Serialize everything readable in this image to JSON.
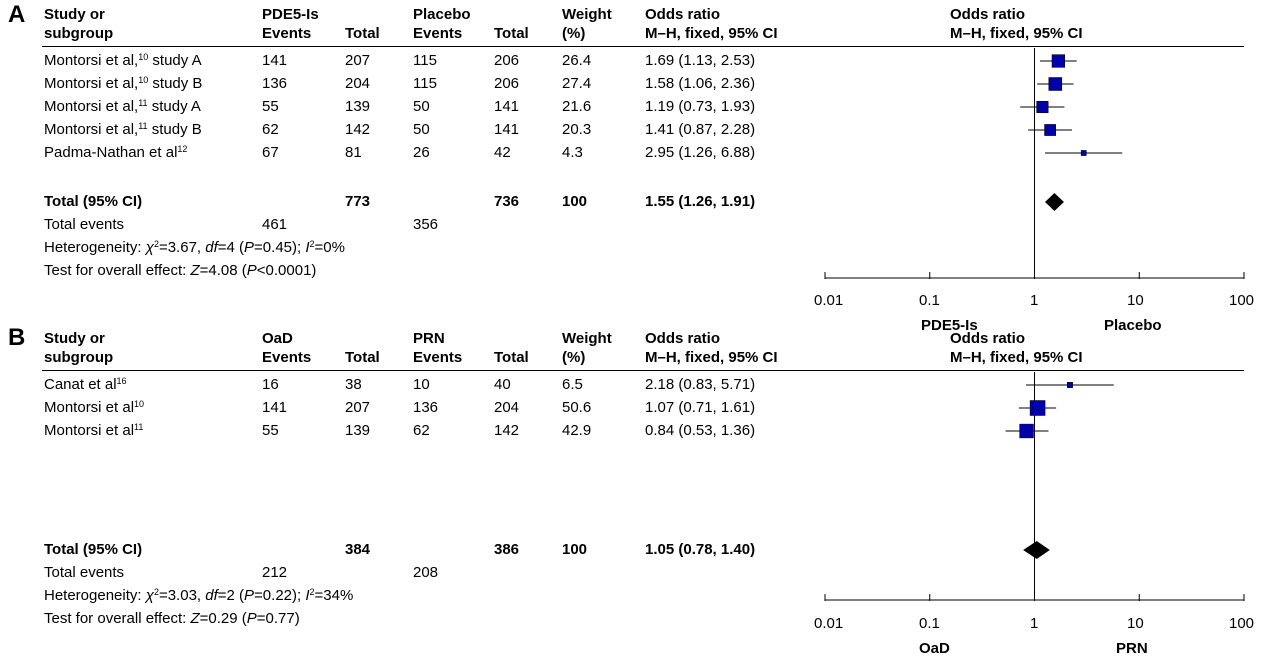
{
  "chart_data": [
    {
      "type": "forest",
      "panel_label": "A",
      "headers": {
        "study": [
          "Study or",
          "subgroup"
        ],
        "group1": {
          "name": "PDE5-Is",
          "events": "Events",
          "total": "Total"
        },
        "group2": {
          "name": "Placebo",
          "events": "Events",
          "total": "Total"
        },
        "weight": [
          "Weight",
          "(%)"
        ],
        "or_text": [
          "Odds ratio",
          "M–H, fixed, 95% CI"
        ],
        "or_plot": [
          "Odds ratio",
          "M–H, fixed, 95% CI"
        ]
      },
      "studies": [
        {
          "name": "Montorsi et al,",
          "ref": "10",
          "suffix": " study A",
          "e1": "141",
          "t1": "207",
          "e2": "115",
          "t2": "206",
          "weight": "26.4",
          "or_text": "1.69 (1.13, 2.53)",
          "or": 1.69,
          "lo": 1.13,
          "hi": 2.53
        },
        {
          "name": "Montorsi et al,",
          "ref": "10",
          "suffix": " study B",
          "e1": "136",
          "t1": "204",
          "e2": "115",
          "t2": "206",
          "weight": "27.4",
          "or_text": "1.58 (1.06, 2.36)",
          "or": 1.58,
          "lo": 1.06,
          "hi": 2.36
        },
        {
          "name": "Montorsi et al,",
          "ref": "11",
          "suffix": " study A",
          "e1": "55",
          "t1": "139",
          "e2": "50",
          "t2": "141",
          "weight": "21.6",
          "or_text": "1.19 (0.73, 1.93)",
          "or": 1.19,
          "lo": 0.73,
          "hi": 1.93
        },
        {
          "name": "Montorsi et al,",
          "ref": "11",
          "suffix": " study B",
          "e1": "62",
          "t1": "142",
          "e2": "50",
          "t2": "141",
          "weight": "20.3",
          "or_text": "1.41 (0.87, 2.28)",
          "or": 1.41,
          "lo": 0.87,
          "hi": 2.28
        },
        {
          "name": "Padma-Nathan et al",
          "ref": "12",
          "suffix": "",
          "e1": "67",
          "t1": "81",
          "e2": "26",
          "t2": "42",
          "weight": "4.3",
          "or_text": "2.95 (1.26, 6.88)",
          "or": 2.95,
          "lo": 1.26,
          "hi": 6.88
        }
      ],
      "total": {
        "label": "Total (95% CI)",
        "t1": "773",
        "t2": "736",
        "weight": "100",
        "or_text": "1.55 (1.26, 1.91)",
        "or": 1.55,
        "lo": 1.26,
        "hi": 1.91
      },
      "total_events": {
        "label": "Total events",
        "e1": "461",
        "e2": "356"
      },
      "heterogeneity": {
        "prefix": "Heterogeneity: ",
        "chi": "χ",
        "chi_sup": "2",
        "chi_val": "=3.67, ",
        "df_label": "df",
        "df_val": "=4 (",
        "p_label": "P",
        "p_val": "=0.45); ",
        "i_label": "I",
        "i_sup": "2",
        "i_val": "=0%"
      },
      "overall": {
        "prefix": "Test for overall effect: ",
        "z_label": "Z",
        "z_val": "=4.08 (",
        "p_label": "P",
        "p_val": "<0.0001)"
      },
      "axis": {
        "scale": "log",
        "ticks": [
          0.01,
          0.1,
          1,
          10,
          100
        ],
        "tick_labels": [
          "0.01",
          "0.1",
          "1",
          "10",
          "100"
        ],
        "favours_left": "PDE5-Is",
        "favours_right": "Placebo"
      }
    },
    {
      "type": "forest",
      "panel_label": "B",
      "headers": {
        "study": [
          "Study or",
          "subgroup"
        ],
        "group1": {
          "name": "OaD",
          "events": "Events",
          "total": "Total"
        },
        "group2": {
          "name": "PRN",
          "events": "Events",
          "total": "Total"
        },
        "weight": [
          "Weight",
          "(%)"
        ],
        "or_text": [
          "Odds ratio",
          "M–H, fixed, 95% CI"
        ],
        "or_plot": [
          "Odds ratio",
          "M–H, fixed, 95% CI"
        ]
      },
      "studies": [
        {
          "name": "Canat et al",
          "ref": "16",
          "suffix": "",
          "e1": "16",
          "t1": "38",
          "e2": "10",
          "t2": "40",
          "weight": "6.5",
          "or_text": "2.18 (0.83, 5.71)",
          "or": 2.18,
          "lo": 0.83,
          "hi": 5.71
        },
        {
          "name": "Montorsi et al",
          "ref": "10",
          "suffix": "",
          "e1": "141",
          "t1": "207",
          "e2": "136",
          "t2": "204",
          "weight": "50.6",
          "or_text": "1.07 (0.71, 1.61)",
          "or": 1.07,
          "lo": 0.71,
          "hi": 1.61
        },
        {
          "name": "Montorsi et al",
          "ref": "11",
          "suffix": "",
          "e1": "55",
          "t1": "139",
          "e2": "62",
          "t2": "142",
          "weight": "42.9",
          "or_text": "0.84 (0.53, 1.36)",
          "or": 0.84,
          "lo": 0.53,
          "hi": 1.36
        }
      ],
      "total": {
        "label": "Total (95% CI)",
        "t1": "384",
        "t2": "386",
        "weight": "100",
        "or_text": "1.05 (0.78, 1.40)",
        "or": 1.05,
        "lo": 0.78,
        "hi": 1.4
      },
      "total_events": {
        "label": "Total events",
        "e1": "212",
        "e2": "208"
      },
      "heterogeneity": {
        "prefix": "Heterogeneity: ",
        "chi": "χ",
        "chi_sup": "2",
        "chi_val": "=3.03, ",
        "df_label": "df",
        "df_val": "=2 (",
        "p_label": "P",
        "p_val": "=0.22); ",
        "i_label": "I",
        "i_sup": "2",
        "i_val": "=34%"
      },
      "overall": {
        "prefix": "Test for overall effect: ",
        "z_label": "Z",
        "z_val": "=0.29 (",
        "p_label": "P",
        "p_val": "=0.77)"
      },
      "axis": {
        "scale": "log",
        "ticks": [
          0.01,
          0.1,
          1,
          10,
          100
        ],
        "tick_labels": [
          "0.01",
          "0.1",
          "1",
          "10",
          "100"
        ],
        "favours_left": "OaD",
        "favours_right": "PRN"
      }
    }
  ],
  "colors": {
    "square": "#0000A8",
    "diamond": "#000000",
    "text": "#000000"
  }
}
